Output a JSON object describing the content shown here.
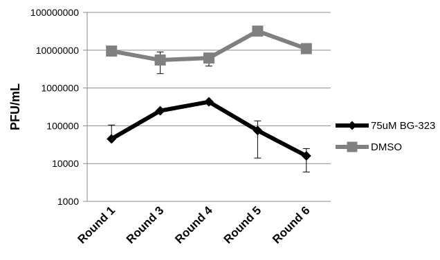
{
  "chart_data": {
    "type": "line",
    "title": "",
    "xlabel": "",
    "ylabel": "PFU/mL",
    "yscale": "log",
    "ylim": [
      1000,
      100000000
    ],
    "yticks": [
      {
        "value": 1000,
        "label": "1000"
      },
      {
        "value": 10000,
        "label": "10000"
      },
      {
        "value": 100000,
        "label": "100000"
      },
      {
        "value": 1000000,
        "label": "1000000"
      },
      {
        "value": 10000000,
        "label": "10000000"
      },
      {
        "value": 100000000,
        "label": "100000000"
      }
    ],
    "grid": "horizontal",
    "legend_position": "right",
    "categories": [
      "Round 1",
      "Round 3",
      "Round 4",
      "Round 5",
      "Round 6"
    ],
    "series": [
      {
        "name": "75uM BG-323",
        "color": "#000000",
        "marker": "diamond",
        "values": [
          45000,
          250000,
          430000,
          75000,
          16000
        ],
        "error_low": [
          null,
          null,
          null,
          14000,
          6000
        ],
        "error_high": [
          105000,
          null,
          null,
          135000,
          25000
        ]
      },
      {
        "name": "DMSO",
        "color": "#808080",
        "marker": "square",
        "values": [
          9500000,
          5500000,
          6200000,
          32000000,
          11000000
        ],
        "error_low": [
          null,
          2400000,
          3800000,
          null,
          null
        ],
        "error_high": [
          null,
          9000000,
          null,
          null,
          null
        ]
      }
    ]
  }
}
